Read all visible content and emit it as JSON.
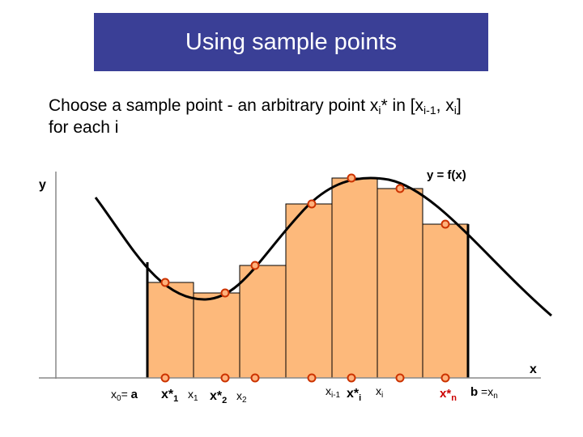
{
  "title": "Using sample points",
  "intro": {
    "line1_a": "Choose a sample point - an arbitrary point x",
    "line1_sub1": "i",
    "line1_b": "* in [x",
    "line1_sub2": "i-1",
    "line1_c": ", x",
    "line1_sub3": "i",
    "line1_d": "]",
    "line2": "for each i"
  },
  "axes": {
    "y_label": "y",
    "x_label": "x"
  },
  "curve_label": "y = f(x)",
  "colors": {
    "title_bg": "#3a3f96",
    "bar_fill": "#fdb97b",
    "point": "#cc3300",
    "axis": "#888888"
  },
  "x_axis_labels": {
    "x0": "x",
    "x0_sub": "0",
    "x0_eq": "= ",
    "a": "a",
    "xs1": "x*",
    "xs1_sub": "1",
    "x1": "x",
    "x1_sub": "1",
    "xs2": "x*",
    "xs2_sub": "2",
    "x2": "x",
    "x2_sub": "2",
    "xim1": "x",
    "xim1_sub": "i-1",
    "xsi": "x*",
    "xsi_sub": "i",
    "xi": "x",
    "xi_sub": "i",
    "xsn": "x*",
    "xsn_sub": "n",
    "b": "b",
    "beq": " =x",
    "bn_sub": "n"
  }
}
